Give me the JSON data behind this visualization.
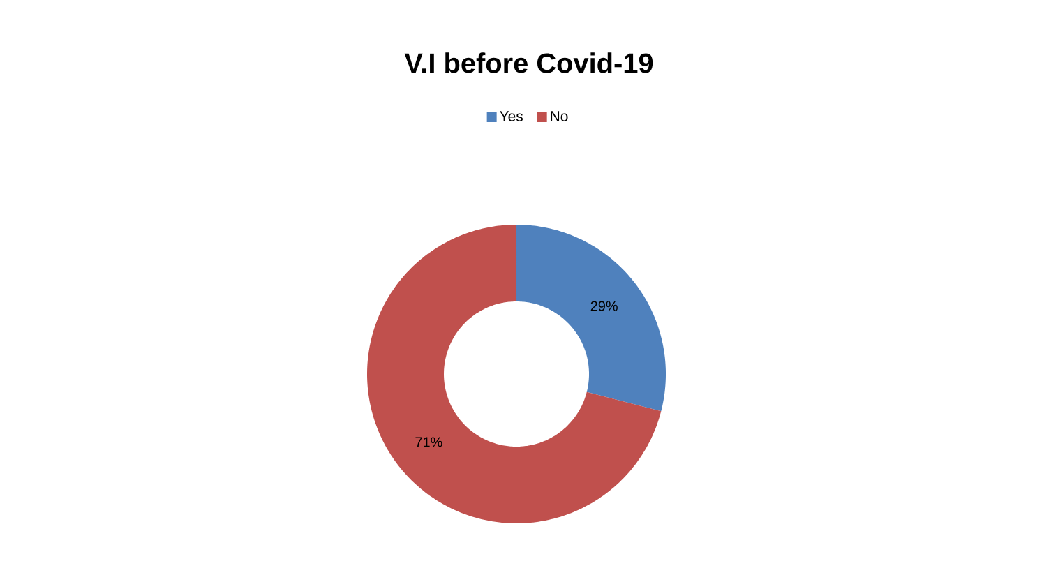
{
  "chart_data": {
    "type": "donut",
    "title": "V.I before Covid-19",
    "categories": [
      "Yes",
      "No"
    ],
    "values": [
      29,
      71
    ],
    "colors": [
      "#4f81bd",
      "#c0504d"
    ],
    "value_labels": [
      "29%",
      "71%"
    ],
    "legend": "top"
  }
}
